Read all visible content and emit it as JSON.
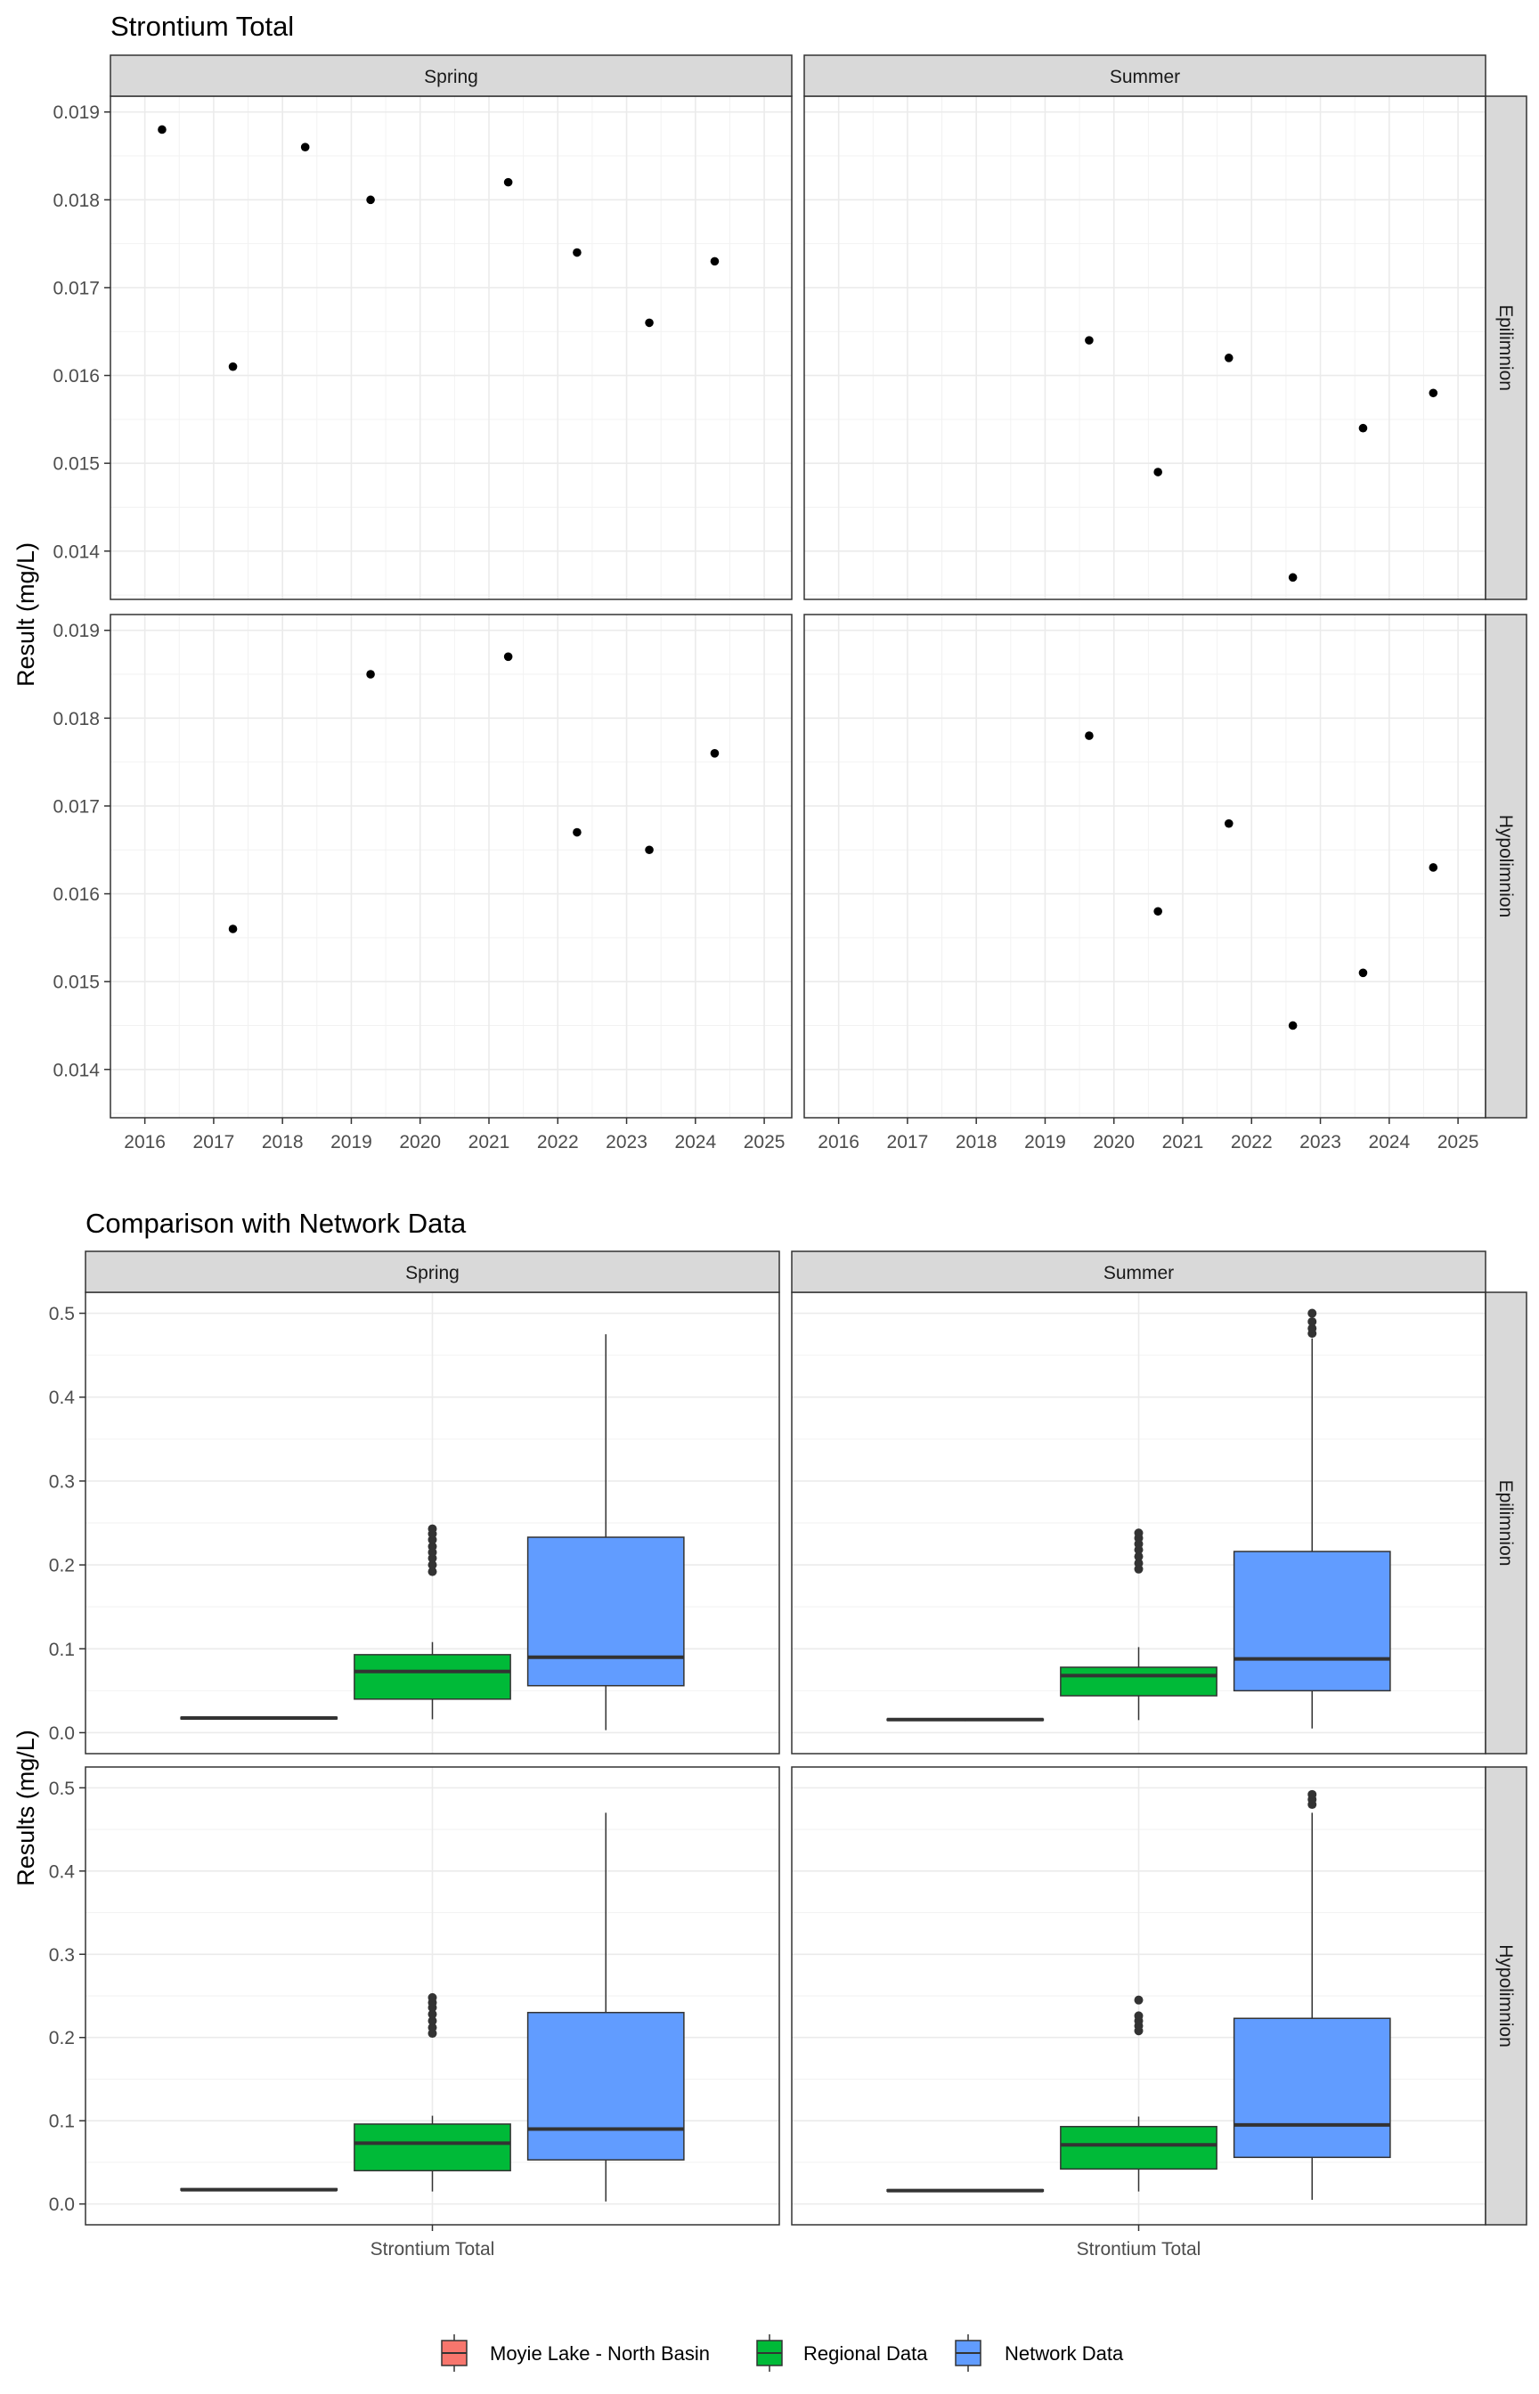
{
  "chart_data": [
    {
      "type": "scatter",
      "title": "Strontium Total",
      "ylabel": "Result (mg/L)",
      "xlabel": "",
      "x_ticks": [
        2016,
        2017,
        2018,
        2019,
        2020,
        2021,
        2022,
        2023,
        2024,
        2025
      ],
      "xlim": [
        2015.5,
        2025.4
      ],
      "y_ticks": [
        0.014,
        0.015,
        0.016,
        0.017,
        0.018,
        0.019
      ],
      "ylim": [
        0.01345,
        0.01918
      ],
      "facet_columns": [
        "Spring",
        "Summer"
      ],
      "facet_rows": [
        "Epilimnion",
        "Hypolimnion"
      ],
      "grid": true,
      "marker_color": "#000000",
      "panels": [
        {
          "column": "Spring",
          "row": "Epilimnion",
          "points": [
            [
              2016.25,
              0.0188
            ],
            [
              2017.28,
              0.0161
            ],
            [
              2018.33,
              0.0186
            ],
            [
              2019.28,
              0.018
            ],
            [
              2021.28,
              0.0182
            ],
            [
              2022.28,
              0.0174
            ],
            [
              2023.33,
              0.0166
            ],
            [
              2024.28,
              0.0173
            ]
          ]
        },
        {
          "column": "Summer",
          "row": "Epilimnion",
          "points": [
            [
              2019.64,
              0.0164
            ],
            [
              2020.64,
              0.0149
            ],
            [
              2021.67,
              0.0162
            ],
            [
              2022.6,
              0.0137
            ],
            [
              2023.62,
              0.0154
            ],
            [
              2024.64,
              0.0158
            ]
          ]
        },
        {
          "column": "Spring",
          "row": "Hypolimnion",
          "points": [
            [
              2017.28,
              0.0156
            ],
            [
              2019.28,
              0.0185
            ],
            [
              2021.28,
              0.0187
            ],
            [
              2022.28,
              0.0167
            ],
            [
              2023.33,
              0.0165
            ],
            [
              2024.28,
              0.0176
            ]
          ]
        },
        {
          "column": "Summer",
          "row": "Hypolimnion",
          "points": [
            [
              2019.64,
              0.0178
            ],
            [
              2020.64,
              0.0158
            ],
            [
              2021.67,
              0.0168
            ],
            [
              2022.6,
              0.0145
            ],
            [
              2023.62,
              0.0151
            ],
            [
              2024.64,
              0.0163
            ]
          ]
        }
      ]
    },
    {
      "type": "box",
      "title": "Comparison with Network Data",
      "ylabel": "Results (mg/L)",
      "xlabel": "",
      "categories": [
        "Strontium Total"
      ],
      "y_ticks": [
        0.0,
        0.1,
        0.2,
        0.3,
        0.4,
        0.5
      ],
      "ylim": [
        -0.025,
        0.525
      ],
      "facet_columns": [
        "Spring",
        "Summer"
      ],
      "facet_rows": [
        "Epilimnion",
        "Hypolimnion"
      ],
      "grid": true,
      "legend": {
        "position": "bottom",
        "entries": [
          {
            "name": "Moyie Lake - North Basin",
            "color": "#F8766D"
          },
          {
            "name": "Regional Data",
            "color": "#00BA38"
          },
          {
            "name": "Network Data",
            "color": "#619CFF"
          }
        ]
      },
      "panels": [
        {
          "column": "Spring",
          "row": "Epilimnion",
          "boxes": [
            {
              "series": "Moyie Lake - North Basin",
              "min": 0.0161,
              "q1": 0.0165,
              "median": 0.0175,
              "q3": 0.0183,
              "max": 0.0188,
              "outliers": []
            },
            {
              "series": "Regional Data",
              "min": 0.016,
              "q1": 0.04,
              "median": 0.073,
              "q3": 0.093,
              "max": 0.108,
              "outliers": [
                0.192,
                0.2,
                0.208,
                0.215,
                0.222,
                0.23,
                0.237,
                0.243
              ]
            },
            {
              "series": "Network Data",
              "min": 0.003,
              "q1": 0.056,
              "median": 0.09,
              "q3": 0.233,
              "max": 0.475,
              "outliers": []
            }
          ]
        },
        {
          "column": "Summer",
          "row": "Epilimnion",
          "boxes": [
            {
              "series": "Moyie Lake - North Basin",
              "min": 0.0137,
              "q1": 0.0148,
              "median": 0.0156,
              "q3": 0.0162,
              "max": 0.0164,
              "outliers": []
            },
            {
              "series": "Regional Data",
              "min": 0.015,
              "q1": 0.044,
              "median": 0.068,
              "q3": 0.078,
              "max": 0.102,
              "outliers": [
                0.195,
                0.202,
                0.21,
                0.218,
                0.225,
                0.232,
                0.238
              ]
            },
            {
              "series": "Network Data",
              "min": 0.005,
              "q1": 0.05,
              "median": 0.088,
              "q3": 0.216,
              "max": 0.47,
              "outliers": [
                0.476,
                0.482,
                0.49,
                0.5
              ]
            }
          ]
        },
        {
          "column": "Spring",
          "row": "Hypolimnion",
          "boxes": [
            {
              "series": "Moyie Lake - North Basin",
              "min": 0.0156,
              "q1": 0.0166,
              "median": 0.0171,
              "q3": 0.0183,
              "max": 0.0187,
              "outliers": []
            },
            {
              "series": "Regional Data",
              "min": 0.015,
              "q1": 0.04,
              "median": 0.073,
              "q3": 0.096,
              "max": 0.106,
              "outliers": [
                0.205,
                0.212,
                0.22,
                0.228,
                0.236,
                0.242,
                0.248
              ]
            },
            {
              "series": "Network Data",
              "min": 0.003,
              "q1": 0.053,
              "median": 0.09,
              "q3": 0.23,
              "max": 0.47,
              "outliers": []
            }
          ]
        },
        {
          "column": "Summer",
          "row": "Hypolimnion",
          "boxes": [
            {
              "series": "Moyie Lake - North Basin",
              "min": 0.0145,
              "q1": 0.0154,
              "median": 0.016,
              "q3": 0.017,
              "max": 0.0178,
              "outliers": []
            },
            {
              "series": "Regional Data",
              "min": 0.015,
              "q1": 0.042,
              "median": 0.071,
              "q3": 0.093,
              "max": 0.105,
              "outliers": [
                0.208,
                0.214,
                0.22,
                0.226,
                0.245
              ]
            },
            {
              "series": "Network Data",
              "min": 0.005,
              "q1": 0.056,
              "median": 0.095,
              "q3": 0.223,
              "max": 0.47,
              "outliers": [
                0.48,
                0.486,
                0.492
              ]
            }
          ]
        }
      ]
    }
  ]
}
